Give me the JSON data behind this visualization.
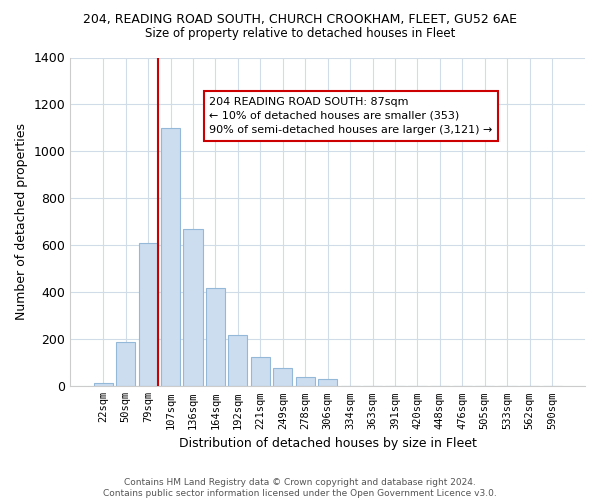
{
  "title": "204, READING ROAD SOUTH, CHURCH CROOKHAM, FLEET, GU52 6AE",
  "subtitle": "Size of property relative to detached houses in Fleet",
  "xlabel": "Distribution of detached houses by size in Fleet",
  "ylabel": "Number of detached properties",
  "bar_color": "#ccddf0",
  "bar_edge_color": "#94b8d8",
  "categories": [
    "22sqm",
    "50sqm",
    "79sqm",
    "107sqm",
    "136sqm",
    "164sqm",
    "192sqm",
    "221sqm",
    "249sqm",
    "278sqm",
    "306sqm",
    "334sqm",
    "363sqm",
    "391sqm",
    "420sqm",
    "448sqm",
    "476sqm",
    "505sqm",
    "533sqm",
    "562sqm",
    "590sqm"
  ],
  "values": [
    15,
    190,
    610,
    1100,
    670,
    420,
    220,
    125,
    80,
    40,
    30,
    0,
    0,
    0,
    0,
    0,
    0,
    0,
    0,
    0,
    0
  ],
  "ylim": [
    0,
    1400
  ],
  "yticks": [
    0,
    200,
    400,
    600,
    800,
    1000,
    1200,
    1400
  ],
  "vline_x_idx": 2,
  "vline_color": "#cc0000",
  "annotation_text": "204 READING ROAD SOUTH: 87sqm\n← 10% of detached houses are smaller (353)\n90% of semi-detached houses are larger (3,121) →",
  "footer": "Contains HM Land Registry data © Crown copyright and database right 2024.\nContains public sector information licensed under the Open Government Licence v3.0.",
  "background_color": "#ffffff",
  "grid_color": "#d0dce8"
}
